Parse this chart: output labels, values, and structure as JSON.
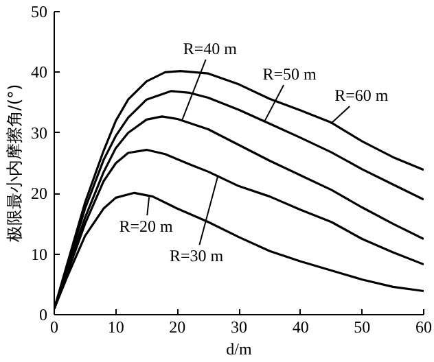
{
  "chart_data": {
    "type": "line",
    "xlabel": "d/m",
    "ylabel": "极限最小内摩擦角/(°)",
    "xlim": [
      0,
      60
    ],
    "ylim": [
      0,
      50
    ],
    "xticks": [
      0,
      10,
      20,
      30,
      40,
      50,
      60
    ],
    "yticks": [
      0,
      10,
      20,
      30,
      40,
      50
    ],
    "grid": false,
    "line_style": "solid",
    "marker": "none",
    "series": [
      {
        "color": "#000000",
        "x": [
          0,
          2,
          5,
          8,
          10,
          13,
          16,
          20,
          25,
          30,
          35,
          40,
          45,
          50,
          55,
          60
        ],
        "values": [
          1,
          6,
          13,
          17.5,
          19.3,
          20.1,
          19.5,
          17.5,
          15.3,
          12.8,
          10.5,
          8.8,
          7.3,
          5.8,
          4.6,
          3.9
        ]
      },
      {
        "color": "#000000",
        "x": [
          0,
          2,
          5,
          8,
          10,
          12,
          15,
          18,
          22,
          25,
          30,
          35,
          40,
          45,
          50,
          55,
          60
        ],
        "values": [
          1,
          6.5,
          15,
          22,
          25,
          26.7,
          27.2,
          26.5,
          24.8,
          23.6,
          21.2,
          19.5,
          17.3,
          15.3,
          12.5,
          10.3,
          8.3
        ]
      },
      {
        "color": "#000000",
        "x": [
          0,
          2,
          5,
          8,
          10,
          12,
          15,
          17.5,
          20,
          25,
          30,
          35,
          40,
          45,
          50,
          55,
          60
        ],
        "values": [
          1,
          7,
          16,
          23.5,
          27.5,
          30,
          32.2,
          32.7,
          32.3,
          30.6,
          28,
          25.4,
          23,
          20.6,
          17.7,
          15,
          12.5
        ]
      },
      {
        "color": "#000000",
        "x": [
          0,
          2,
          5,
          8,
          10,
          12,
          15,
          19,
          22,
          25,
          30,
          35,
          40,
          45,
          50,
          55,
          60
        ],
        "values": [
          1,
          7.5,
          17.5,
          25.5,
          29.5,
          32.5,
          35.5,
          36.9,
          36.6,
          35.8,
          33.8,
          31.5,
          29.2,
          26.8,
          24,
          21.5,
          19
        ]
      },
      {
        "color": "#000000",
        "x": [
          0,
          2,
          5,
          8,
          10,
          12,
          15,
          18,
          20.5,
          25,
          30,
          35,
          40,
          45,
          50,
          55,
          60
        ],
        "values": [
          1,
          8,
          18.5,
          27,
          32,
          35.5,
          38.5,
          40,
          40.2,
          39.8,
          38,
          35.6,
          33.7,
          31.7,
          28.6,
          26,
          23.9
        ]
      }
    ],
    "annotations": [
      {
        "text": "R=20 m",
        "x": 15.4,
        "y": 19.4
      },
      {
        "text": "R=30 m",
        "x": 26.6,
        "y": 23
      },
      {
        "text": "R=40 m",
        "x": 20.8,
        "y": 32.2
      },
      {
        "text": "R=50 m",
        "x": 34.2,
        "y": 32
      },
      {
        "text": "R=60 m",
        "x": 44.9,
        "y": 31.5
      }
    ]
  }
}
